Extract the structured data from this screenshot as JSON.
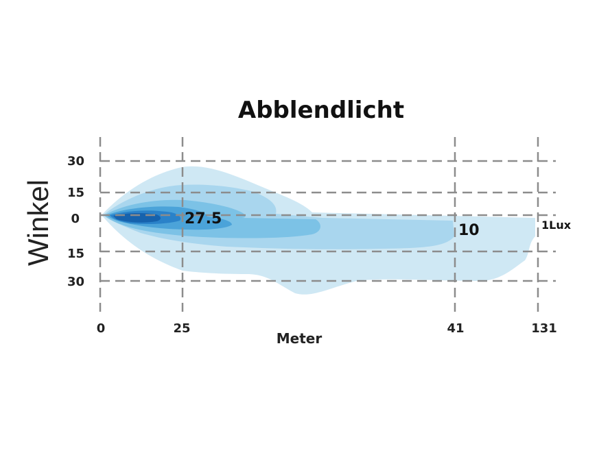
{
  "chart_data": {
    "type": "area",
    "title": "Abblendlicht",
    "xlabel": "Meter",
    "ylabel": "Winkel",
    "x_ticks": [
      "0",
      "25",
      "41",
      "131"
    ],
    "y_ticks_top": [
      "30",
      "15",
      "0"
    ],
    "y_ticks_bottom": [
      "15",
      "30"
    ],
    "annotations": [
      "27.5",
      "10",
      "1Lux"
    ],
    "grid": true,
    "colors": [
      "#cfe8f4",
      "#a9d6ee",
      "#7cc2e6",
      "#4ba3d9",
      "#2a82c9",
      "#1662ad"
    ]
  }
}
